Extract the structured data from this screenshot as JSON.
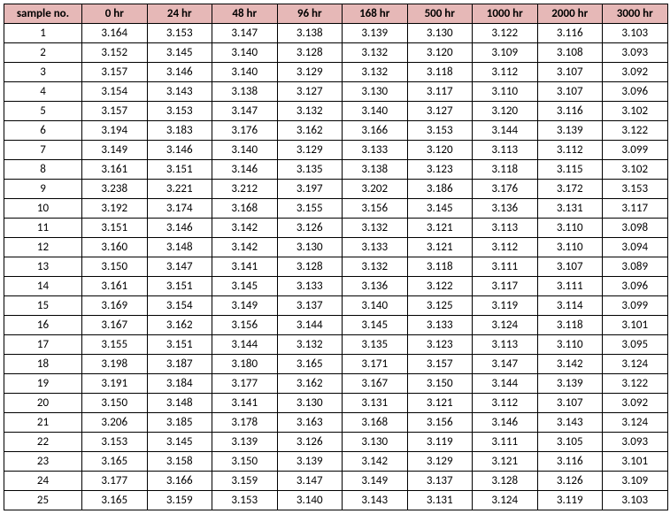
{
  "table": {
    "header_bg": "#e6b8b7",
    "border_color": "#000000",
    "font_family": "Calibri",
    "header_fontsize": 13,
    "cell_fontsize": 13,
    "columns": [
      "sample no.",
      "0 hr",
      "24 hr",
      "48 hr",
      "96 hr",
      "168 hr",
      "500 hr",
      "1000 hr",
      "2000 hr",
      "3000 hr"
    ],
    "rows": [
      [
        "1",
        "3.164",
        "3.153",
        "3.147",
        "3.138",
        "3.139",
        "3.130",
        "3.122",
        "3.116",
        "3.103"
      ],
      [
        "2",
        "3.152",
        "3.145",
        "3.140",
        "3.128",
        "3.132",
        "3.120",
        "3.109",
        "3.108",
        "3.093"
      ],
      [
        "3",
        "3.157",
        "3.146",
        "3.140",
        "3.129",
        "3.132",
        "3.118",
        "3.112",
        "3.107",
        "3.092"
      ],
      [
        "4",
        "3.154",
        "3.143",
        "3.138",
        "3.127",
        "3.130",
        "3.117",
        "3.110",
        "3.107",
        "3.096"
      ],
      [
        "5",
        "3.157",
        "3.153",
        "3.147",
        "3.132",
        "3.140",
        "3.127",
        "3.120",
        "3.116",
        "3.102"
      ],
      [
        "6",
        "3.194",
        "3.183",
        "3.176",
        "3.162",
        "3.166",
        "3.153",
        "3.144",
        "3.139",
        "3.122"
      ],
      [
        "7",
        "3.149",
        "3.146",
        "3.140",
        "3.129",
        "3.133",
        "3.120",
        "3.113",
        "3.112",
        "3.099"
      ],
      [
        "8",
        "3.161",
        "3.151",
        "3.146",
        "3.135",
        "3.138",
        "3.123",
        "3.118",
        "3.115",
        "3.102"
      ],
      [
        "9",
        "3.238",
        "3.221",
        "3.212",
        "3.197",
        "3.202",
        "3.186",
        "3.176",
        "3.172",
        "3.153"
      ],
      [
        "10",
        "3.192",
        "3.174",
        "3.168",
        "3.155",
        "3.156",
        "3.145",
        "3.136",
        "3.131",
        "3.117"
      ],
      [
        "11",
        "3.151",
        "3.146",
        "3.142",
        "3.126",
        "3.132",
        "3.121",
        "3.113",
        "3.110",
        "3.098"
      ],
      [
        "12",
        "3.160",
        "3.148",
        "3.142",
        "3.130",
        "3.133",
        "3.121",
        "3.112",
        "3.110",
        "3.094"
      ],
      [
        "13",
        "3.150",
        "3.147",
        "3.141",
        "3.128",
        "3.132",
        "3.118",
        "3.111",
        "3.107",
        "3.089"
      ],
      [
        "14",
        "3.161",
        "3.151",
        "3.145",
        "3.133",
        "3.136",
        "3.122",
        "3.117",
        "3.111",
        "3.096"
      ],
      [
        "15",
        "3.169",
        "3.154",
        "3.149",
        "3.137",
        "3.140",
        "3.125",
        "3.119",
        "3.114",
        "3.099"
      ],
      [
        "16",
        "3.167",
        "3.162",
        "3.156",
        "3.144",
        "3.145",
        "3.133",
        "3.124",
        "3.118",
        "3.101"
      ],
      [
        "17",
        "3.155",
        "3.151",
        "3.144",
        "3.132",
        "3.135",
        "3.123",
        "3.113",
        "3.110",
        "3.095"
      ],
      [
        "18",
        "3.198",
        "3.187",
        "3.180",
        "3.165",
        "3.171",
        "3.157",
        "3.147",
        "3.142",
        "3.124"
      ],
      [
        "19",
        "3.191",
        "3.184",
        "3.177",
        "3.162",
        "3.167",
        "3.150",
        "3.144",
        "3.139",
        "3.122"
      ],
      [
        "20",
        "3.150",
        "3.148",
        "3.141",
        "3.130",
        "3.131",
        "3.121",
        "3.112",
        "3.107",
        "3.092"
      ],
      [
        "21",
        "3.206",
        "3.185",
        "3.178",
        "3.163",
        "3.168",
        "3.156",
        "3.146",
        "3.143",
        "3.124"
      ],
      [
        "22",
        "3.153",
        "3.145",
        "3.139",
        "3.126",
        "3.130",
        "3.119",
        "3.111",
        "3.105",
        "3.093"
      ],
      [
        "23",
        "3.165",
        "3.158",
        "3.150",
        "3.139",
        "3.142",
        "3.129",
        "3.121",
        "3.116",
        "3.101"
      ],
      [
        "24",
        "3.177",
        "3.166",
        "3.159",
        "3.147",
        "3.149",
        "3.137",
        "3.128",
        "3.126",
        "3.109"
      ],
      [
        "25",
        "3.165",
        "3.159",
        "3.153",
        "3.140",
        "3.143",
        "3.131",
        "3.124",
        "3.119",
        "3.103"
      ]
    ]
  }
}
